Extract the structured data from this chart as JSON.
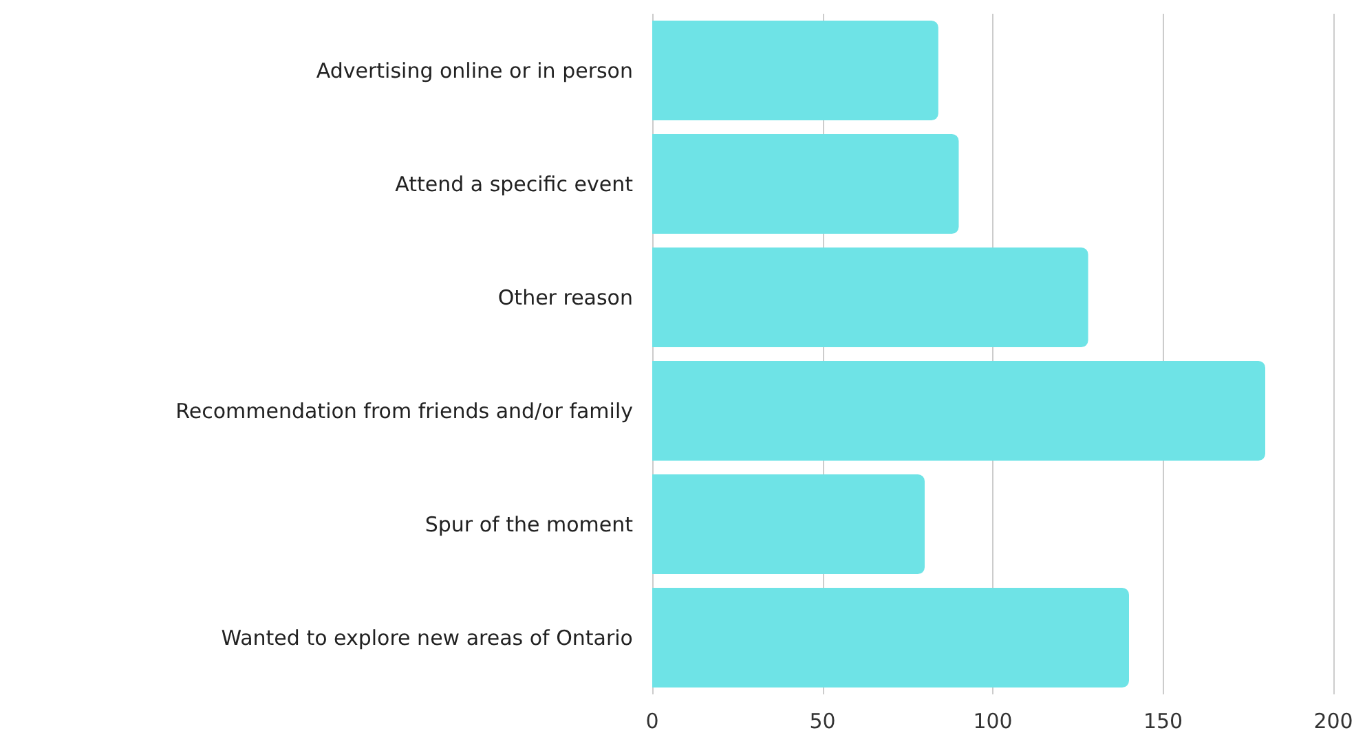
{
  "chart_data": {
    "type": "bar",
    "orientation": "horizontal",
    "categories": [
      "Advertising online or in person",
      "Attend a specific event",
      "Other reason",
      "Recommendation from friends and/or family",
      "Spur of the moment",
      "Wanted to explore new areas of Ontario"
    ],
    "values": [
      84,
      90,
      128,
      180,
      80,
      140
    ],
    "color": "#6ee3e6",
    "xlim": [
      0,
      200
    ],
    "xticks": [
      0,
      50,
      100,
      150,
      200
    ],
    "grid": "x"
  }
}
